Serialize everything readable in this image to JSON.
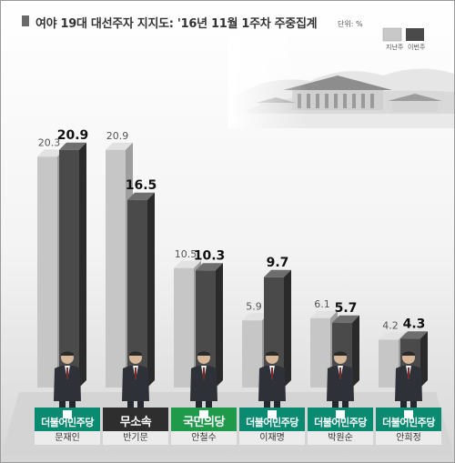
{
  "title": "여야 19대 대선주자 지지도: '16년 11월 1주차 주중집계",
  "unit": "단위: %",
  "legend": {
    "prev": "지난주",
    "this": "이번주"
  },
  "colors": {
    "prev": "#c8c8c8",
    "this": "#4a4a4a",
    "minjoo": "#0b8a72",
    "independent": "#2e2e2e",
    "people": "#1f9a4a"
  },
  "chart_data": {
    "type": "bar",
    "title": "여야 19대 대선주자 지지도: '16년 11월 1주차 주중집계",
    "xlabel": "",
    "ylabel": "",
    "ylim": [
      0,
      22
    ],
    "categories": [
      "문재인",
      "반기문",
      "안철수",
      "이재명",
      "박원순",
      "안희정"
    ],
    "series": [
      {
        "name": "지난주",
        "values": [
          20.3,
          20.9,
          10.5,
          5.9,
          6.1,
          4.2
        ]
      },
      {
        "name": "이번주",
        "values": [
          20.9,
          16.5,
          10.3,
          9.7,
          5.7,
          4.3
        ]
      }
    ],
    "prev_labels": [
      "20.3",
      "20.9",
      "10.5",
      "5.9",
      "6.1",
      "4.2"
    ],
    "this_labels": [
      "20.9",
      "16.5",
      "10.3",
      "9.7",
      "5.7",
      "4.3"
    ],
    "grid": false,
    "legend_position": "top-right"
  },
  "candidates": [
    {
      "name": "문재인",
      "party": "더불어민주당",
      "party_key": "minjoo"
    },
    {
      "name": "반기문",
      "party": "무소속",
      "party_key": "independent"
    },
    {
      "name": "안철수",
      "party": "국민의당",
      "party_key": "people"
    },
    {
      "name": "이재명",
      "party": "더불어민주당",
      "party_key": "minjoo"
    },
    {
      "name": "박원순",
      "party": "더불어민주당",
      "party_key": "minjoo"
    },
    {
      "name": "안희정",
      "party": "더불어민주당",
      "party_key": "minjoo"
    }
  ]
}
